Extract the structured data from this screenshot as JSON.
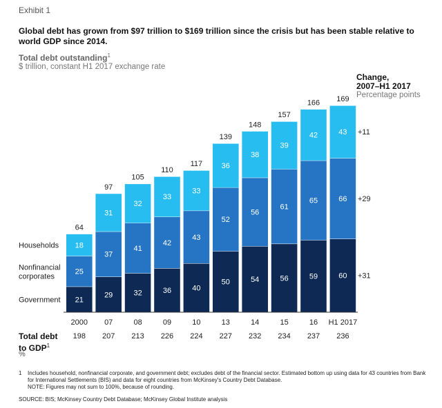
{
  "exhibit": "Exhibit 1",
  "headline": "Global debt has grown from $97 trillion to $169 trillion since the crisis but has been stable relative to world GDP since 2014.",
  "measure": "Total debt outstanding",
  "measure_sup": "1",
  "unit": "$ trillion, constant H1 2017 exchange rate",
  "change_title_1": "Change,",
  "change_title_2": "2007–H1 2017",
  "change_unit": "Percentage points",
  "gdp_label_1": "Total debt",
  "gdp_label_2": "to GDP",
  "gdp_label_sup": "1",
  "gdp_unit": "%",
  "footnote_num": "1",
  "footnote_1": "Includes household, nonfinancial corporate, and government debt; excludes debt of the financial sector. Estimated bottom up using data for 43 countries from Bank for International Settlements (BIS) and data for eight countries from McKinsey's Country Debt Database.",
  "footnote_2": "NOTE: Figures may not sum to 100%, because of rounding.",
  "source": "SOURCE:  BIS; McKinsey Country Debt Database; McKinsey Global Institute analysis",
  "chart_data": {
    "type": "bar",
    "stacked": true,
    "categories": [
      "2000",
      "07",
      "08",
      "09",
      "10",
      "13",
      "14",
      "15",
      "16",
      "H1 2017"
    ],
    "series": [
      {
        "name": "Government",
        "color": "#0e2a54",
        "values": [
          21,
          29,
          32,
          36,
          40,
          50,
          54,
          56,
          59,
          60
        ]
      },
      {
        "name": "Nonfinancial corporates",
        "color": "#2675c4",
        "values": [
          25,
          37,
          41,
          42,
          43,
          52,
          56,
          61,
          65,
          66
        ]
      },
      {
        "name": "Households",
        "color": "#27bdf0",
        "values": [
          18,
          31,
          32,
          33,
          33,
          36,
          38,
          39,
          42,
          43
        ]
      }
    ],
    "totals": [
      64,
      97,
      105,
      110,
      117,
      139,
      148,
      157,
      166,
      169
    ],
    "series_labels": [
      {
        "series": "Households",
        "text": "Households"
      },
      {
        "series": "Nonfinancial corporates",
        "text_1": "Nonfinancial",
        "text_2": "corporates"
      },
      {
        "series": "Government",
        "text": "Government"
      }
    ],
    "changes": [
      {
        "series": "Households",
        "text": "+11"
      },
      {
        "series": "Nonfinancial corporates",
        "text": "+29"
      },
      {
        "series": "Government",
        "text": "+31"
      }
    ],
    "debt_to_gdp": [
      198,
      207,
      213,
      226,
      224,
      227,
      232,
      234,
      237,
      236
    ],
    "ylim": [
      0,
      169
    ]
  }
}
